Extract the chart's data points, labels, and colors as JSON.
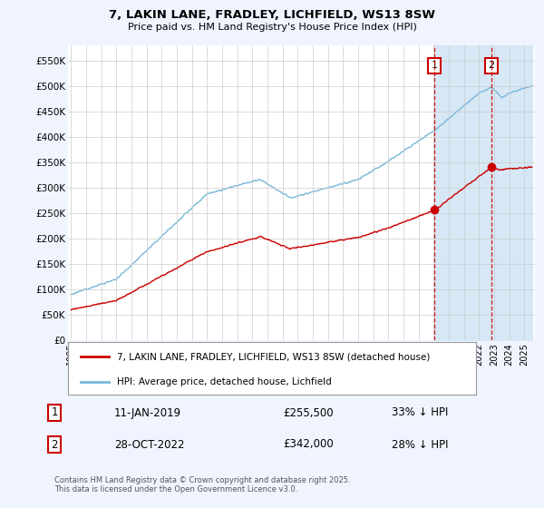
{
  "title": "7, LAKIN LANE, FRADLEY, LICHFIELD, WS13 8SW",
  "subtitle": "Price paid vs. HM Land Registry's House Price Index (HPI)",
  "ylabel_ticks": [
    "£0",
    "£50K",
    "£100K",
    "£150K",
    "£200K",
    "£250K",
    "£300K",
    "£350K",
    "£400K",
    "£450K",
    "£500K",
    "£550K"
  ],
  "ytick_values": [
    0,
    50000,
    100000,
    150000,
    200000,
    250000,
    300000,
    350000,
    400000,
    450000,
    500000,
    550000
  ],
  "ylim": [
    0,
    580000
  ],
  "hpi_color": "#7ab8d9",
  "price_color": "#cc0000",
  "marker1_date": 2019.04,
  "marker1_price": 255500,
  "marker2_date": 2022.83,
  "marker2_price": 342000,
  "shade_color": "#d6e8f5",
  "annotation1": "1",
  "annotation2": "2",
  "legend_property": "7, LAKIN LANE, FRADLEY, LICHFIELD, WS13 8SW (detached house)",
  "legend_hpi": "HPI: Average price, detached house, Lichfield",
  "table_row1": [
    "1",
    "11-JAN-2019",
    "£255,500",
    "33% ↓ HPI"
  ],
  "table_row2": [
    "2",
    "28-OCT-2022",
    "£342,000",
    "28% ↓ HPI"
  ],
  "footnote": "Contains HM Land Registry data © Crown copyright and database right 2025.\nThis data is licensed under the Open Government Licence v3.0.",
  "background_color": "#f0f4ff",
  "plot_bg_color": "#ffffff",
  "grid_color": "#cccccc"
}
